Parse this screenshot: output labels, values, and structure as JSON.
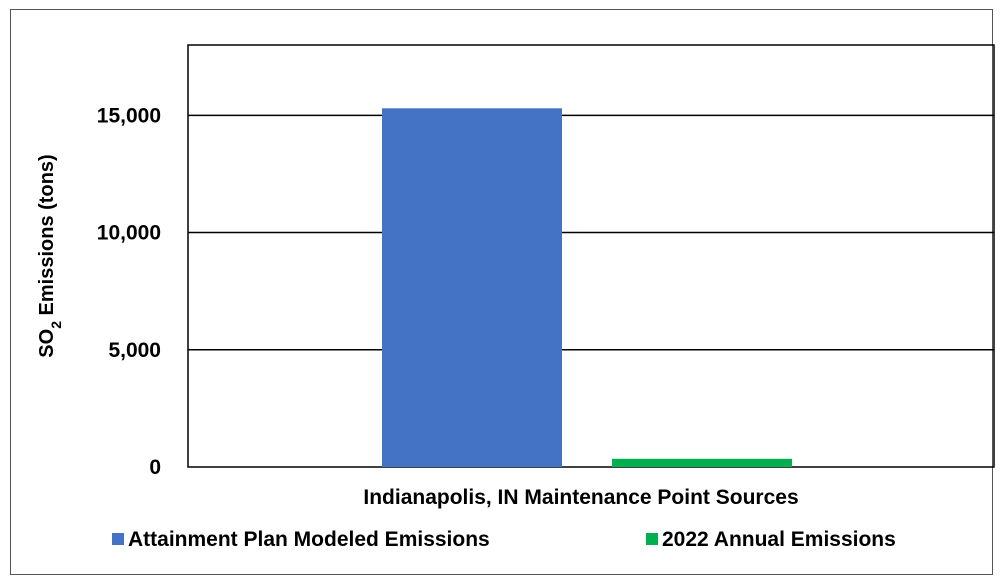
{
  "chart_data": {
    "type": "bar",
    "categories": [
      "Indianapolis, IN Maintenance Point Sources"
    ],
    "series": [
      {
        "name": "Attainment Plan Modeled Emissions",
        "values": [
          15300
        ],
        "color": "#4472C4"
      },
      {
        "name": "2022 Annual Emissions",
        "values": [
          350
        ],
        "color": "#00B050"
      }
    ],
    "ylabel_main": "SO",
    "ylabel_sub": "2",
    "ylabel_rest": " Emissions (tons)",
    "ylim": [
      0,
      18000
    ],
    "yticks": [
      0,
      5000,
      10000,
      15000
    ],
    "ytick_labels": [
      "0",
      "5,000",
      "10,000",
      "15,000"
    ],
    "grid": true,
    "legend_position": "bottom"
  }
}
